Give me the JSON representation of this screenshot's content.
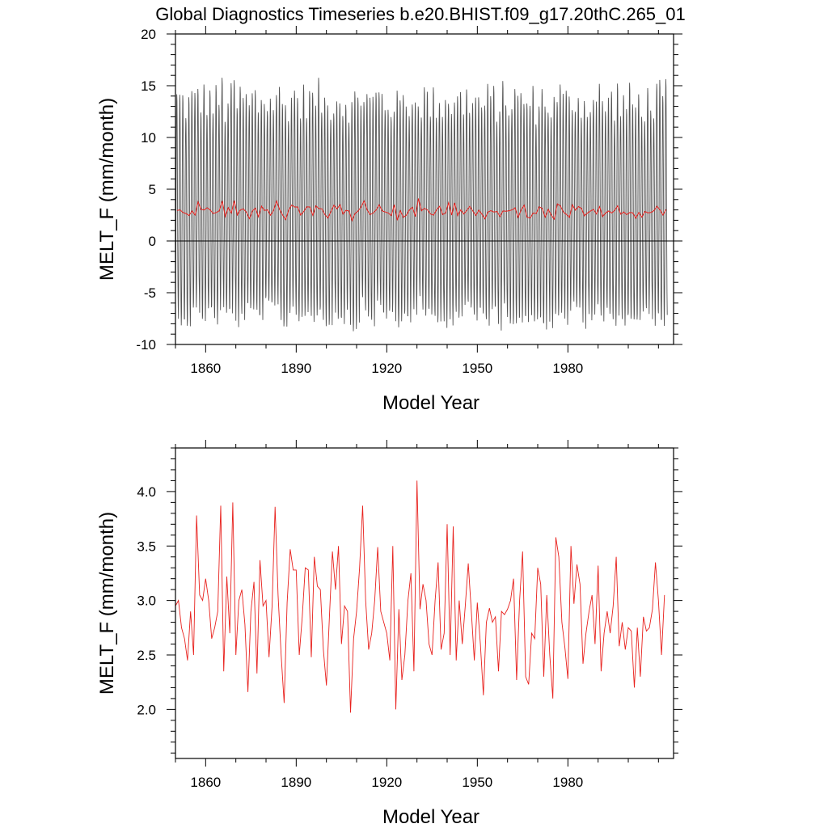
{
  "title": "Global Diagnostics Timeseries b.e20.BHIST.f09_g17.20thC.265_01",
  "chart_data": [
    {
      "type": "line",
      "xlabel": "Model Year",
      "ylabel": "MELT_F (mm/month)",
      "xlim": [
        1850,
        2015
      ],
      "ylim": [
        -10,
        20
      ],
      "xticks": [
        "1860",
        "1890",
        "1920",
        "1950",
        "1980"
      ],
      "yticks": [
        "-10",
        "-5",
        "0",
        "5",
        "10",
        "15",
        "20"
      ],
      "reference_line_y": 0,
      "series": [
        {
          "color": "#555555",
          "note_values": "monthly values oscillate seasonally between about -8 and 17; monthly series is generated in script around the annual mean",
          "monthly_range": [
            -8.5,
            17.5
          ]
        },
        {
          "color": "#e8211d",
          "values_from": "annual"
        }
      ]
    },
    {
      "type": "line",
      "xlabel": "Model Year",
      "ylabel": "MELT_F (mm/month)",
      "xlim": [
        1850,
        2015
      ],
      "ylim": [
        1.55,
        4.4
      ],
      "xticks": [
        "1860",
        "1890",
        "1920",
        "1950",
        "1980"
      ],
      "yticks": [
        "2.0",
        "2.5",
        "3.0",
        "3.5",
        "4.0"
      ],
      "series": [
        {
          "color": "#e8211d",
          "x_start": 1850,
          "values": [
            2.95,
            3.0,
            2.75,
            2.65,
            2.45,
            2.9,
            2.5,
            3.78,
            3.05,
            3.0,
            3.2,
            3.0,
            2.65,
            2.75,
            2.9,
            3.87,
            2.35,
            3.22,
            2.7,
            3.9,
            2.5,
            3.0,
            3.1,
            2.78,
            2.16,
            2.9,
            3.17,
            2.33,
            3.37,
            2.95,
            3.0,
            2.48,
            2.95,
            3.86,
            3.05,
            2.5,
            2.06,
            2.98,
            3.47,
            3.28,
            3.28,
            2.5,
            2.85,
            3.3,
            3.28,
            2.48,
            3.4,
            3.13,
            3.1,
            2.55,
            2.22,
            2.85,
            3.45,
            3.1,
            3.5,
            2.6,
            2.95,
            2.9,
            1.97,
            2.65,
            2.9,
            3.3,
            3.87,
            3.0,
            2.55,
            2.7,
            3.0,
            3.49,
            2.9,
            2.8,
            2.7,
            2.45,
            3.5,
            2.0,
            2.92,
            2.27,
            2.5,
            3.0,
            3.25,
            2.35,
            4.1,
            2.92,
            3.15,
            3.0,
            2.6,
            2.5,
            3.0,
            3.35,
            2.55,
            2.7,
            3.7,
            2.5,
            3.68,
            2.45,
            3.0,
            2.6,
            2.95,
            3.34,
            2.9,
            2.45,
            2.98,
            2.6,
            2.13,
            2.8,
            2.93,
            2.8,
            2.85,
            2.35,
            2.9,
            2.87,
            2.92,
            3.0,
            3.2,
            2.27,
            3.0,
            3.45,
            2.3,
            2.23,
            2.7,
            2.65,
            3.3,
            3.15,
            2.3,
            3.05,
            2.5,
            2.1,
            3.58,
            3.4,
            2.8,
            2.57,
            2.28,
            3.5,
            2.97,
            3.33,
            3.15,
            2.42,
            2.7,
            2.9,
            3.05,
            2.6,
            3.32,
            2.35,
            2.7,
            2.9,
            2.7,
            2.95,
            3.4,
            2.58,
            2.8,
            2.55,
            2.75,
            2.72,
            2.2,
            2.75,
            2.3,
            2.85,
            2.72,
            2.75,
            2.92,
            3.35,
            3.0,
            2.5,
            3.05
          ]
        }
      ]
    }
  ]
}
